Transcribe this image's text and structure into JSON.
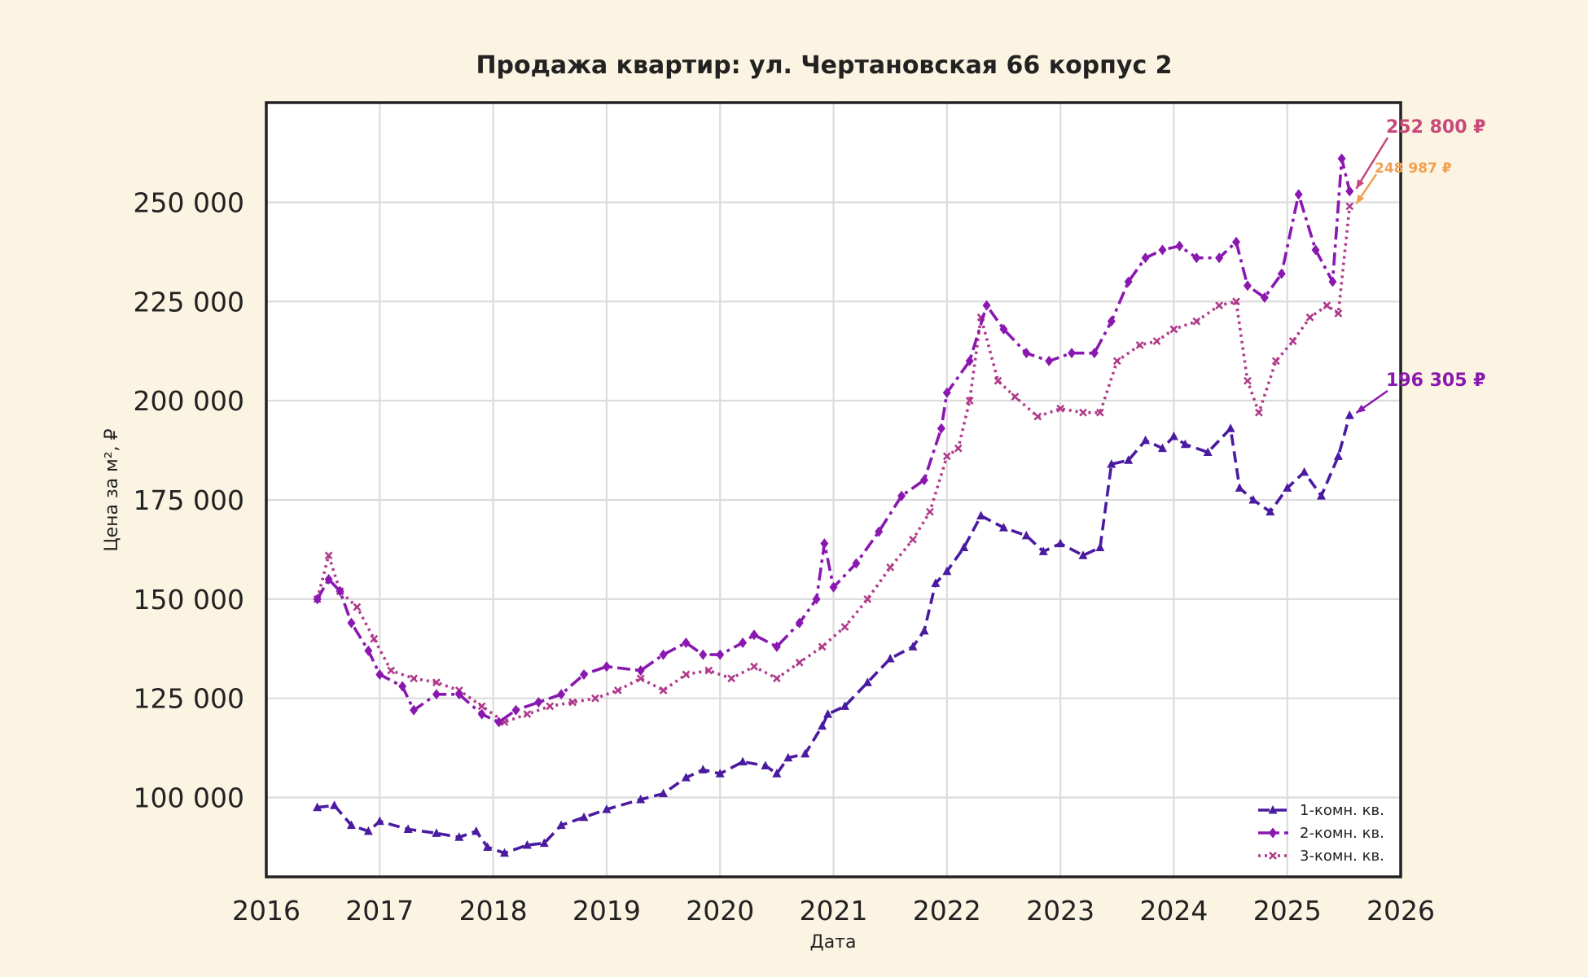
{
  "chart_data": {
    "type": "line",
    "title": "Продажа квартир: ул. Чертановская 66 корпус 2",
    "xlabel": "Дата",
    "ylabel": "Цена за м², ₽",
    "xlim": [
      2016,
      2026
    ],
    "ylim": [
      80000,
      270000
    ],
    "x_ticks": [
      "2016",
      "2017",
      "2018",
      "2019",
      "2020",
      "2021",
      "2022",
      "2023",
      "2024",
      "2025",
      "2026"
    ],
    "y_ticks": [
      {
        "value": 100000,
        "label": "100 000"
      },
      {
        "value": 125000,
        "label": "125 000"
      },
      {
        "value": 150000,
        "label": "150 000"
      },
      {
        "value": 175000,
        "label": "175 000"
      },
      {
        "value": 200000,
        "label": "200 000"
      },
      {
        "value": 225000,
        "label": "225 000"
      },
      {
        "value": 250000,
        "label": "250 000"
      }
    ],
    "grid": true,
    "legend_position": "lower-right",
    "series": [
      {
        "name": "1-комн. кв.",
        "color": "#4a1aa0",
        "dash": "dashed",
        "marker": "triangle",
        "x": [
          2016.45,
          2016.6,
          2016.75,
          2016.9,
          2017.0,
          2017.25,
          2017.5,
          2017.7,
          2017.85,
          2017.95,
          2018.1,
          2018.3,
          2018.45,
          2018.6,
          2018.8,
          2019.0,
          2019.3,
          2019.5,
          2019.7,
          2019.85,
          2020.0,
          2020.2,
          2020.4,
          2020.5,
          2020.6,
          2020.75,
          2020.9,
          2020.95,
          2021.1,
          2021.3,
          2021.5,
          2021.7,
          2021.8,
          2021.9,
          2022.0,
          2022.15,
          2022.3,
          2022.5,
          2022.7,
          2022.85,
          2023.0,
          2023.2,
          2023.35,
          2023.45,
          2023.6,
          2023.75,
          2023.9,
          2024.0,
          2024.1,
          2024.3,
          2024.5,
          2024.58,
          2024.7,
          2024.85,
          2025.0,
          2025.15,
          2025.3,
          2025.45,
          2025.55
        ],
        "y": [
          97500,
          98000,
          93000,
          91500,
          94000,
          92000,
          91000,
          90000,
          91500,
          87500,
          86000,
          88000,
          88500,
          93000,
          95000,
          97000,
          99500,
          101000,
          105000,
          107000,
          106000,
          109000,
          108000,
          106000,
          110000,
          111000,
          118000,
          121000,
          123000,
          129000,
          135000,
          138000,
          142000,
          154000,
          157000,
          163000,
          171000,
          168000,
          166000,
          162000,
          164000,
          161000,
          163000,
          184000,
          185000,
          190000,
          188000,
          191000,
          189000,
          187000,
          193000,
          178000,
          175000,
          172000,
          178000,
          182000,
          176000,
          186000,
          196305
        ]
      },
      {
        "name": "2-комн. кв.",
        "color": "#8a18b0",
        "dash": "dash-dot",
        "marker": "diamond",
        "x": [
          2016.45,
          2016.55,
          2016.65,
          2016.75,
          2016.9,
          2017.0,
          2017.2,
          2017.3,
          2017.5,
          2017.7,
          2017.9,
          2018.05,
          2018.2,
          2018.4,
          2018.6,
          2018.8,
          2019.0,
          2019.3,
          2019.5,
          2019.7,
          2019.85,
          2020.0,
          2020.2,
          2020.3,
          2020.5,
          2020.7,
          2020.85,
          2020.92,
          2021.0,
          2021.2,
          2021.4,
          2021.6,
          2021.8,
          2021.95,
          2022.0,
          2022.2,
          2022.35,
          2022.5,
          2022.7,
          2022.9,
          2023.1,
          2023.3,
          2023.45,
          2023.6,
          2023.75,
          2023.9,
          2024.05,
          2024.2,
          2024.4,
          2024.55,
          2024.65,
          2024.8,
          2024.95,
          2025.1,
          2025.25,
          2025.4,
          2025.48,
          2025.55
        ],
        "y": [
          150000,
          155000,
          152000,
          144000,
          137000,
          131000,
          128000,
          122000,
          126000,
          126000,
          121000,
          119000,
          122000,
          124000,
          126000,
          131000,
          133000,
          132000,
          136000,
          139000,
          136000,
          136000,
          139000,
          141000,
          138000,
          144000,
          150000,
          164000,
          153000,
          159000,
          167000,
          176000,
          180000,
          193000,
          202000,
          210000,
          224000,
          218000,
          212000,
          210000,
          212000,
          212000,
          220000,
          230000,
          236000,
          238000,
          239000,
          236000,
          236000,
          240000,
          229000,
          226000,
          232000,
          252000,
          238000,
          230000,
          261000,
          252800
        ]
      },
      {
        "name": "3-комн. кв.",
        "color": "#b03a8a",
        "dash": "dotted",
        "marker": "x",
        "x": [
          2016.45,
          2016.55,
          2016.65,
          2016.8,
          2016.95,
          2017.1,
          2017.3,
          2017.5,
          2017.7,
          2017.9,
          2018.1,
          2018.3,
          2018.5,
          2018.7,
          2018.9,
          2019.1,
          2019.3,
          2019.5,
          2019.7,
          2019.9,
          2020.1,
          2020.3,
          2020.5,
          2020.7,
          2020.9,
          2021.1,
          2021.3,
          2021.5,
          2021.7,
          2021.85,
          2022.0,
          2022.1,
          2022.2,
          2022.3,
          2022.45,
          2022.6,
          2022.8,
          2023.0,
          2023.2,
          2023.35,
          2023.5,
          2023.7,
          2023.85,
          2024.0,
          2024.2,
          2024.4,
          2024.55,
          2024.65,
          2024.75,
          2024.9,
          2025.05,
          2025.2,
          2025.35,
          2025.45,
          2025.55
        ],
        "y": [
          150000,
          161000,
          152000,
          148000,
          140000,
          132000,
          130000,
          129000,
          127000,
          123000,
          119000,
          121000,
          123000,
          124000,
          125000,
          127000,
          130000,
          127000,
          131000,
          132000,
          130000,
          133000,
          130000,
          134000,
          138000,
          143000,
          150000,
          158000,
          165000,
          172000,
          186000,
          188000,
          200000,
          221000,
          205000,
          201000,
          196000,
          198000,
          197000,
          197000,
          210000,
          214000,
          215000,
          218000,
          220000,
          224000,
          225000,
          205000,
          197000,
          210000,
          215000,
          221000,
          224000,
          222000,
          248987
        ]
      }
    ],
    "annotations": [
      {
        "label": "252 800 ₽",
        "value": 252800,
        "color": "#c8487a",
        "series": "2-комн. кв."
      },
      {
        "label": "248 987 ₽",
        "value": 248987,
        "color": "#f0a050",
        "series": "3-комн. кв."
      },
      {
        "label": "196 305 ₽",
        "value": 196305,
        "color": "#8a18b0",
        "series": "1-комн. кв."
      }
    ]
  }
}
